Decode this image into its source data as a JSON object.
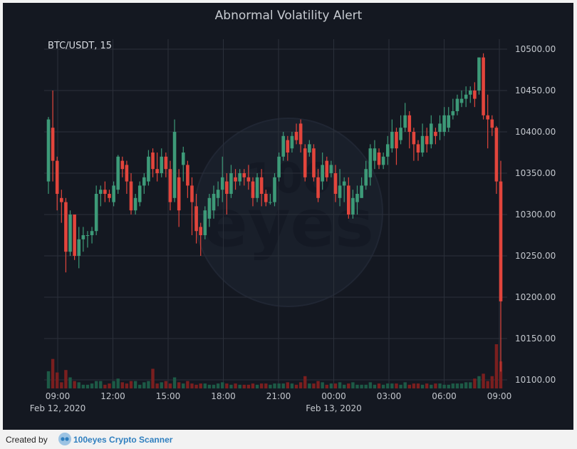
{
  "title": "Abnormal Volatility Alert",
  "symbol": "BTC/USDT, 15",
  "footer": {
    "created_by": "Created by",
    "brand": "100eyes Crypto Scanner"
  },
  "colors": {
    "up": "#3d9a78",
    "down": "#e2453c",
    "up_volume": "#1d5a46",
    "down_volume": "#7a1f1f",
    "grid": "#2b303a",
    "background": "#141821",
    "text": "#c3c7cd"
  },
  "watermark_icon": "100eyes-logo",
  "chart_data": {
    "type": "candlestick",
    "title": "Abnormal Volatility Alert",
    "symbol": "BTC/USDT, 15",
    "ylim": [
      10090,
      10510
    ],
    "y_ticks": [
      "10100.00",
      "10150.00",
      "10200.00",
      "10250.00",
      "10300.00",
      "10350.00",
      "10400.00",
      "10450.00",
      "10500.00"
    ],
    "x_ticks": [
      {
        "label": "09:00",
        "date": "Feb 12, 2020"
      },
      {
        "label": "12:00"
      },
      {
        "label": "15:00"
      },
      {
        "label": "18:00"
      },
      {
        "label": "21:00"
      },
      {
        "label": "00:00",
        "date": "Feb 13, 2020"
      },
      {
        "label": "03:00"
      },
      {
        "label": "06:00"
      },
      {
        "label": "09:00"
      }
    ],
    "candles": [
      [
        10340,
        10415,
        10325,
        10418
      ],
      [
        10405,
        10365,
        10340,
        10450
      ],
      [
        10365,
        10325,
        10305,
        10370
      ],
      [
        10320,
        10315,
        10290,
        10330
      ],
      [
        10315,
        10255,
        10230,
        10320
      ],
      [
        10255,
        10300,
        10250,
        10305
      ],
      [
        10300,
        10250,
        10245,
        10300
      ],
      [
        10250,
        10270,
        10235,
        10285
      ],
      [
        10270,
        10275,
        10255,
        10285
      ],
      [
        10275,
        10275,
        10260,
        10280
      ],
      [
        10275,
        10280,
        10265,
        10285
      ],
      [
        10280,
        10325,
        10275,
        10335
      ],
      [
        10325,
        10330,
        10310,
        10335
      ],
      [
        10330,
        10325,
        10315,
        10340
      ],
      [
        10325,
        10320,
        10315,
        10330
      ],
      [
        10315,
        10335,
        10310,
        10340
      ],
      [
        10330,
        10370,
        10325,
        10372
      ],
      [
        10365,
        10355,
        10345,
        10370
      ],
      [
        10360,
        10340,
        10325,
        10365
      ],
      [
        10340,
        10305,
        10300,
        10350
      ],
      [
        10305,
        10320,
        10300,
        10325
      ],
      [
        10315,
        10335,
        10310,
        10340
      ],
      [
        10335,
        10345,
        10325,
        10350
      ],
      [
        10340,
        10370,
        10335,
        10378
      ],
      [
        10375,
        10355,
        10345,
        10380
      ],
      [
        10355,
        10350,
        10340,
        10375
      ],
      [
        10350,
        10370,
        10345,
        10380
      ],
      [
        10370,
        10355,
        10345,
        10375
      ],
      [
        10355,
        10315,
        10305,
        10365
      ],
      [
        10320,
        10400,
        10315,
        10415
      ],
      [
        10345,
        10305,
        10285,
        10355
      ],
      [
        10360,
        10375,
        10340,
        10382
      ],
      [
        10360,
        10335,
        10320,
        10365
      ],
      [
        10335,
        10315,
        10275,
        10345
      ],
      [
        10310,
        10280,
        10265,
        10325
      ],
      [
        10285,
        10275,
        10250,
        10290
      ],
      [
        10275,
        10305,
        10270,
        10310
      ],
      [
        10295,
        10320,
        10285,
        10325
      ],
      [
        10305,
        10325,
        10295,
        10335
      ],
      [
        10320,
        10330,
        10310,
        10340
      ],
      [
        10330,
        10345,
        10315,
        10370
      ],
      [
        10340,
        10325,
        10300,
        10350
      ],
      [
        10325,
        10350,
        10320,
        10360
      ],
      [
        10345,
        10340,
        10330,
        10355
      ],
      [
        10340,
        10350,
        10335,
        10355
      ],
      [
        10350,
        10345,
        10335,
        10355
      ],
      [
        10345,
        10340,
        10330,
        10360
      ],
      [
        10340,
        10320,
        10310,
        10345
      ],
      [
        10320,
        10345,
        10315,
        10350
      ],
      [
        10345,
        10325,
        10310,
        10355
      ],
      [
        10325,
        10315,
        10310,
        10330
      ],
      [
        10315,
        10315,
        10312,
        10325
      ],
      [
        10315,
        10345,
        10310,
        10350
      ],
      [
        10345,
        10370,
        10340,
        10375
      ],
      [
        10370,
        10395,
        10365,
        10400
      ],
      [
        10390,
        10375,
        10365,
        10395
      ],
      [
        10380,
        10395,
        10375,
        10400
      ],
      [
        10400,
        10390,
        10385,
        10410
      ],
      [
        10410,
        10385,
        10375,
        10415
      ],
      [
        10380,
        10345,
        10340,
        10385
      ],
      [
        10375,
        10385,
        10370,
        10390
      ],
      [
        10380,
        10345,
        10340,
        10385
      ],
      [
        10345,
        10320,
        10315,
        10355
      ],
      [
        10340,
        10360,
        10330,
        10375
      ],
      [
        10365,
        10345,
        10340,
        10370
      ],
      [
        10350,
        10360,
        10345,
        10365
      ],
      [
        10350,
        10325,
        10315,
        10360
      ],
      [
        10320,
        10335,
        10310,
        10355
      ],
      [
        10335,
        10340,
        10315,
        10345
      ],
      [
        10335,
        10300,
        10295,
        10345
      ],
      [
        10300,
        10320,
        10295,
        10330
      ],
      [
        10315,
        10325,
        10300,
        10335
      ],
      [
        10320,
        10335,
        10320,
        10345
      ],
      [
        10335,
        10355,
        10330,
        10365
      ],
      [
        10345,
        10380,
        10335,
        10385
      ],
      [
        10365,
        10380,
        10355,
        10390
      ],
      [
        10375,
        10360,
        10355,
        10380
      ],
      [
        10360,
        10370,
        10355,
        10375
      ],
      [
        10370,
        10385,
        10360,
        10395
      ],
      [
        10380,
        10400,
        10375,
        10415
      ],
      [
        10400,
        10380,
        10360,
        10405
      ],
      [
        10390,
        10405,
        10385,
        10420
      ],
      [
        10405,
        10420,
        10400,
        10435
      ],
      [
        10420,
        10400,
        10380,
        10425
      ],
      [
        10400,
        10385,
        10365,
        10405
      ],
      [
        10385,
        10375,
        10365,
        10390
      ],
      [
        10375,
        10395,
        10370,
        10410
      ],
      [
        10395,
        10385,
        10375,
        10405
      ],
      [
        10385,
        10410,
        10380,
        10420
      ],
      [
        10400,
        10395,
        10385,
        10405
      ],
      [
        10400,
        10410,
        10390,
        10420
      ],
      [
        10400,
        10420,
        10395,
        10430
      ],
      [
        10405,
        10420,
        10400,
        10430
      ],
      [
        10420,
        10425,
        10415,
        10440
      ],
      [
        10425,
        10440,
        10420,
        10445
      ],
      [
        10435,
        10440,
        10430,
        10450
      ],
      [
        10440,
        10445,
        10430,
        10455
      ],
      [
        10445,
        10450,
        10435,
        10455
      ],
      [
        10450,
        10440,
        10430,
        10460
      ],
      [
        10450,
        10490,
        10445,
        10490
      ],
      [
        10490,
        10420,
        10415,
        10495
      ],
      [
        10420,
        10415,
        10380,
        10445
      ],
      [
        10415,
        10405,
        10395,
        10420
      ],
      [
        10405,
        10340,
        10325,
        10407
      ],
      [
        10340,
        10195,
        10110,
        10365
      ]
    ],
    "volume": [
      1.4,
      2.4,
      1.3,
      0.5,
      1.5,
      0.9,
      0.6,
      0.5,
      0.3,
      0.3,
      0.4,
      0.6,
      0.6,
      0.3,
      0.4,
      0.6,
      0.8,
      0.5,
      0.4,
      0.6,
      0.6,
      0.3,
      0.5,
      0.6,
      1.6,
      0.4,
      0.5,
      0.6,
      0.4,
      0.9,
      0.5,
      0.4,
      0.6,
      0.4,
      0.3,
      0.4,
      0.4,
      0.3,
      0.3,
      0.4,
      0.5,
      0.4,
      0.3,
      0.4,
      0.3,
      0.3,
      0.3,
      0.4,
      0.3,
      0.4,
      0.4,
      0.3,
      0.4,
      0.4,
      0.4,
      0.5,
      0.4,
      0.3,
      0.5,
      1.0,
      0.4,
      0.4,
      0.6,
      0.5,
      0.3,
      0.4,
      0.4,
      0.5,
      0.3,
      0.4,
      0.5,
      0.3,
      0.3,
      0.3,
      0.5,
      0.3,
      0.4,
      0.3,
      0.4,
      0.4,
      0.4,
      0.3,
      0.5,
      0.3,
      0.4,
      0.4,
      0.3,
      0.4,
      0.3,
      0.4,
      0.4,
      0.3,
      0.3,
      0.4,
      0.4,
      0.4,
      0.5,
      0.5,
      0.8,
      1.0,
      1.2,
      0.6,
      1.0,
      3.6,
      2.2
    ]
  }
}
